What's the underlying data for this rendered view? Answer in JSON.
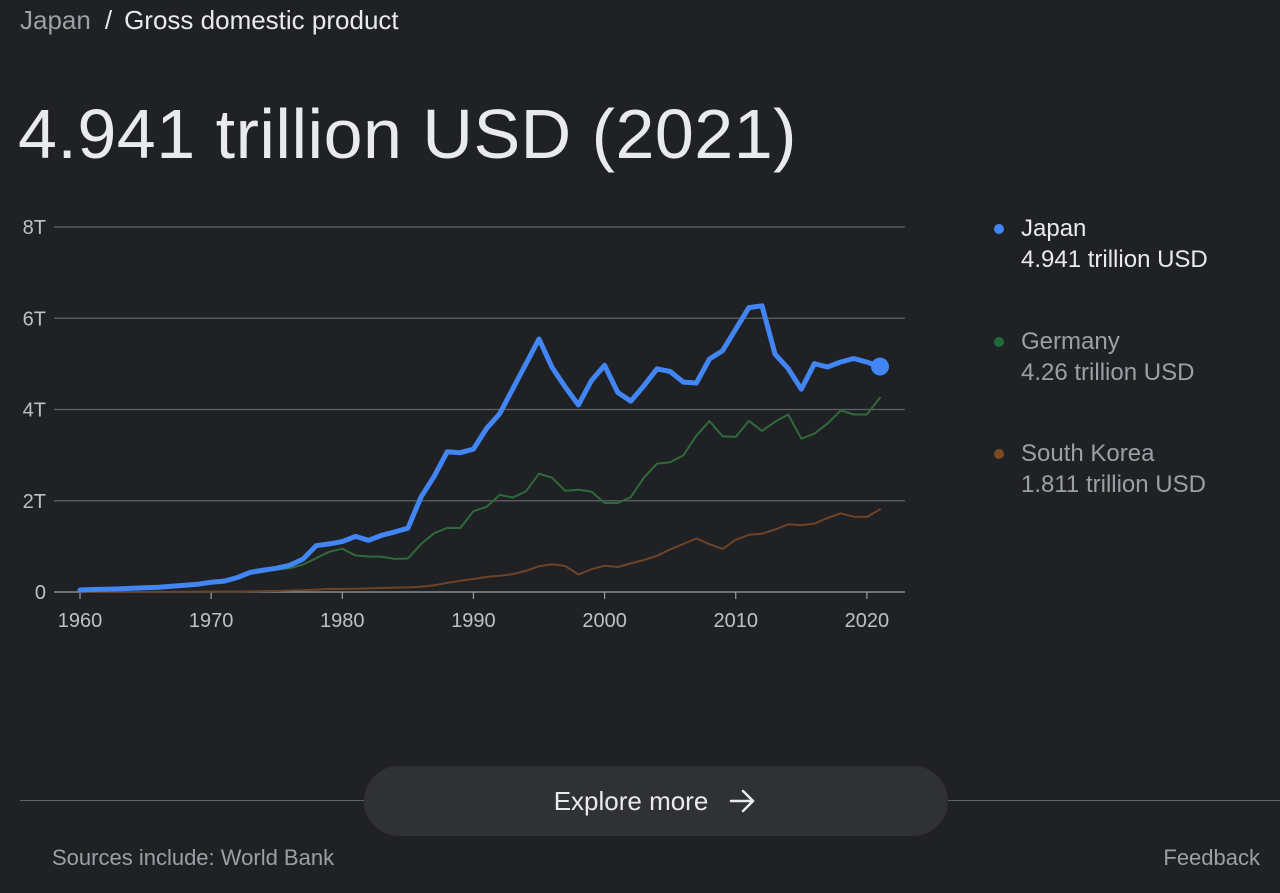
{
  "breadcrumb": {
    "parent": "Japan",
    "separator": "/",
    "current": "Gross domestic product"
  },
  "headline": "4.941 trillion USD (2021)",
  "legend": [
    {
      "name": "Japan",
      "value": "4.941 trillion USD",
      "color": "#4285f4"
    },
    {
      "name": "Germany",
      "value": "4.26 trillion USD",
      "color": "#1e6b3a"
    },
    {
      "name": "South Korea",
      "value": "1.811 trillion USD",
      "color": "#7a4a26"
    }
  ],
  "explore_button": {
    "label": "Explore more",
    "icon": "arrow-right-icon"
  },
  "footer": {
    "sources": "Sources include: World Bank",
    "feedback": "Feedback"
  },
  "colors": {
    "background": "#202124",
    "gridline": "#5f6368",
    "japan": "#4285f4",
    "germany": "#2f6b3a",
    "south_korea": "#6e4426"
  },
  "chart_data": {
    "type": "line",
    "x": [
      1960,
      1961,
      1962,
      1963,
      1964,
      1965,
      1966,
      1967,
      1968,
      1969,
      1970,
      1971,
      1972,
      1973,
      1974,
      1975,
      1976,
      1977,
      1978,
      1979,
      1980,
      1981,
      1982,
      1983,
      1984,
      1985,
      1986,
      1987,
      1988,
      1989,
      1990,
      1991,
      1992,
      1993,
      1994,
      1995,
      1996,
      1997,
      1998,
      1999,
      2000,
      2001,
      2002,
      2003,
      2004,
      2005,
      2006,
      2007,
      2008,
      2009,
      2010,
      2011,
      2012,
      2013,
      2014,
      2015,
      2016,
      2017,
      2018,
      2019,
      2020,
      2021
    ],
    "xlim": [
      1960,
      2021
    ],
    "xticks": [
      1960,
      1970,
      1980,
      1990,
      2000,
      2010,
      2020
    ],
    "ylim": [
      0,
      8
    ],
    "yticks": [
      0,
      2,
      4,
      6,
      8
    ],
    "ytick_labels": [
      "0",
      "2T",
      "4T",
      "6T",
      "8T"
    ],
    "grid": true,
    "legend_position": "right",
    "series": [
      {
        "name": "Japan",
        "unit": "trillion USD",
        "highlight_last": true,
        "values": [
          0.044,
          0.054,
          0.06,
          0.069,
          0.081,
          0.091,
          0.105,
          0.124,
          0.146,
          0.172,
          0.212,
          0.24,
          0.318,
          0.432,
          0.48,
          0.522,
          0.587,
          0.721,
          1.014,
          1.055,
          1.105,
          1.218,
          1.134,
          1.243,
          1.318,
          1.399,
          2.079,
          2.533,
          3.072,
          3.054,
          3.133,
          3.585,
          3.908,
          4.454,
          4.999,
          5.546,
          4.923,
          4.493,
          4.098,
          4.636,
          4.968,
          4.375,
          4.182,
          4.519,
          4.893,
          4.832,
          4.601,
          4.58,
          5.106,
          5.289,
          5.759,
          6.233,
          6.272,
          5.212,
          4.897,
          4.445,
          5.004,
          4.931,
          5.041,
          5.118,
          5.04,
          4.941
        ]
      },
      {
        "name": "Germany",
        "unit": "trillion USD",
        "values": [
          0.0,
          0.0,
          0.0,
          0.0,
          0.0,
          0.0,
          0.0,
          0.0,
          0.0,
          0.0,
          0.216,
          0.249,
          0.3,
          0.398,
          0.445,
          0.49,
          0.519,
          0.6,
          0.74,
          0.882,
          0.95,
          0.8,
          0.777,
          0.771,
          0.725,
          0.734,
          1.049,
          1.288,
          1.404,
          1.402,
          1.772,
          1.868,
          2.131,
          2.071,
          2.206,
          2.592,
          2.503,
          2.218,
          2.243,
          2.2,
          1.95,
          1.95,
          2.08,
          2.506,
          2.814,
          2.846,
          2.993,
          3.425,
          3.745,
          3.412,
          3.4,
          3.75,
          3.53,
          3.73,
          3.89,
          3.36,
          3.47,
          3.69,
          3.98,
          3.89,
          3.89,
          4.26
        ]
      },
      {
        "name": "South Korea",
        "unit": "trillion USD",
        "values": [
          0.004,
          0.002,
          0.003,
          0.004,
          0.003,
          0.003,
          0.004,
          0.005,
          0.006,
          0.008,
          0.009,
          0.01,
          0.011,
          0.014,
          0.019,
          0.022,
          0.03,
          0.038,
          0.052,
          0.067,
          0.065,
          0.072,
          0.078,
          0.088,
          0.097,
          0.101,
          0.117,
          0.147,
          0.199,
          0.246,
          0.284,
          0.33,
          0.356,
          0.393,
          0.463,
          0.566,
          0.61,
          0.57,
          0.383,
          0.497,
          0.576,
          0.548,
          0.627,
          0.702,
          0.793,
          0.934,
          1.053,
          1.172,
          1.047,
          0.944,
          1.144,
          1.253,
          1.278,
          1.37,
          1.484,
          1.466,
          1.5,
          1.623,
          1.725,
          1.651,
          1.645,
          1.811
        ]
      }
    ]
  }
}
